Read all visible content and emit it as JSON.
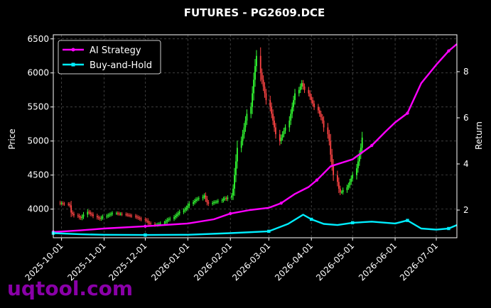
{
  "chart_data": {
    "type": "line",
    "title": "FUTURES - PG2609.DCE",
    "ylabel_left": "Price",
    "ylabel_right": "Return",
    "ylim_left": [
      3580,
      6560
    ],
    "ylim_right": [
      0.8,
      9.6
    ],
    "x_range": [
      "2025-09-25",
      "2026-07-16"
    ],
    "x_ticks": [
      "2025-10-01",
      "2025-11-01",
      "2025-12-01",
      "2026-01-01",
      "2026-02-01",
      "2026-03-01",
      "2026-04-01",
      "2026-05-01",
      "2026-06-01",
      "2026-07-01"
    ],
    "y_ticks_left": [
      4000,
      4500,
      5000,
      5500,
      6000,
      6500
    ],
    "y_ticks_right": [
      2,
      4,
      6,
      8
    ],
    "grid": true,
    "legend_position": "top-left",
    "price_candles_close": {
      "start": "2025-09-30",
      "frequency": "daily (Mon-Fri)",
      "values": [
        4085,
        4088,
        4080,
        4075,
        4070,
        4055,
        3950,
        3930,
        3910,
        3900,
        3880,
        3870,
        3890,
        3920,
        3960,
        3950,
        3930,
        3920,
        3900,
        3880,
        3870,
        3860,
        3875,
        3890,
        3900,
        3910,
        3920,
        3930,
        3940,
        3940,
        3935,
        3930,
        3930,
        3925,
        3920,
        3915,
        3910,
        3905,
        3900,
        3890,
        3880,
        3870,
        3860,
        3850,
        3840,
        3830,
        3800,
        3790,
        3780,
        3770,
        3770,
        3775,
        3780,
        3790,
        3800,
        3820,
        3840,
        3850,
        3860,
        3880,
        3900,
        3920,
        3940,
        3960,
        3980,
        4000,
        4020,
        4050,
        4080,
        4100,
        4120,
        4140,
        4150,
        4160,
        4180,
        4200,
        4150,
        4100,
        4080,
        4090,
        4100,
        4105,
        4110,
        4120,
        4130,
        4150,
        4160,
        4150,
        4170,
        4200,
        4300,
        4500,
        4700,
        4900,
        5000,
        5100,
        5200,
        5300,
        5400,
        5500,
        5700,
        5900,
        6100,
        6250,
        6000,
        5900,
        5800,
        5700,
        5600,
        5500,
        5400,
        5300,
        5200,
        5100,
        5000,
        5050,
        5100,
        5150,
        5200,
        5300,
        5400,
        5500,
        5600,
        5700,
        5750,
        5800,
        5850,
        5800,
        5750,
        5700,
        5650,
        5600,
        5550,
        5500,
        5450,
        5400,
        5350,
        5300,
        5200,
        5100,
        5000,
        4800,
        4650,
        4500,
        4400,
        4300,
        4250,
        4250,
        4280,
        4320,
        4350,
        4400,
        4450,
        4500,
        4600,
        4700,
        4800,
        4900,
        5050
      ]
    },
    "series": [
      {
        "name": "AI Strategy",
        "color": "#ff00ff",
        "marker": "circle",
        "dates": [
          "2025-09-25",
          "2025-10-15",
          "2025-11-01",
          "2025-12-01",
          "2026-01-01",
          "2026-01-20",
          "2026-02-01",
          "2026-02-15",
          "2026-03-01",
          "2026-03-10",
          "2026-03-20",
          "2026-03-30",
          "2026-04-05",
          "2026-04-15",
          "2026-05-01",
          "2026-05-15",
          "2026-05-25",
          "2026-06-01",
          "2026-06-10",
          "2026-06-20",
          "2026-07-01",
          "2026-07-10",
          "2026-07-16"
        ],
        "values": [
          1.05,
          1.12,
          1.2,
          1.3,
          1.42,
          1.6,
          1.85,
          2.0,
          2.1,
          2.3,
          2.7,
          3.0,
          3.3,
          3.9,
          4.2,
          4.8,
          5.4,
          5.8,
          6.2,
          7.5,
          8.3,
          8.9,
          9.2
        ]
      },
      {
        "name": "Buy-and-Hold",
        "color": "#00eeff",
        "marker": "square",
        "dates": [
          "2025-09-25",
          "2025-10-15",
          "2025-11-01",
          "2025-12-01",
          "2026-01-01",
          "2026-02-01",
          "2026-03-01",
          "2026-03-15",
          "2026-03-26",
          "2026-04-01",
          "2026-04-10",
          "2026-04-20",
          "2026-05-01",
          "2026-05-15",
          "2026-06-01",
          "2026-06-10",
          "2026-06-20",
          "2026-07-01",
          "2026-07-10",
          "2026-07-16"
        ],
        "values": [
          1.0,
          0.95,
          0.93,
          0.92,
          0.93,
          1.0,
          1.08,
          1.4,
          1.8,
          1.6,
          1.4,
          1.35,
          1.45,
          1.5,
          1.42,
          1.55,
          1.2,
          1.15,
          1.2,
          1.35
        ]
      }
    ]
  },
  "watermark": "uqtool.com"
}
